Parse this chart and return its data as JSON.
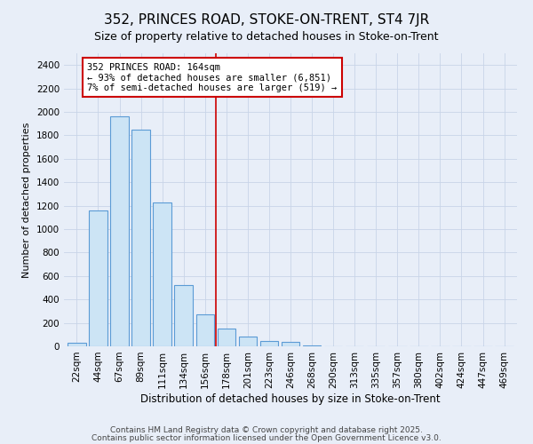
{
  "title": "352, PRINCES ROAD, STOKE-ON-TRENT, ST4 7JR",
  "subtitle": "Size of property relative to detached houses in Stoke-on-Trent",
  "xlabel": "Distribution of detached houses by size in Stoke-on-Trent",
  "ylabel": "Number of detached properties",
  "bar_labels": [
    "22sqm",
    "44sqm",
    "67sqm",
    "89sqm",
    "111sqm",
    "134sqm",
    "156sqm",
    "178sqm",
    "201sqm",
    "223sqm",
    "246sqm",
    "268sqm",
    "290sqm",
    "313sqm",
    "335sqm",
    "357sqm",
    "380sqm",
    "402sqm",
    "424sqm",
    "447sqm",
    "469sqm"
  ],
  "bar_values": [
    30,
    1160,
    1960,
    1850,
    1230,
    520,
    275,
    150,
    85,
    45,
    35,
    5,
    3,
    1,
    0,
    0,
    0,
    0,
    0,
    0,
    0
  ],
  "bar_color": "#cce4f5",
  "bar_edge_color": "#5b9bd5",
  "vline_x": 6.5,
  "vline_color": "#cc0000",
  "annotation_title": "352 PRINCES ROAD: 164sqm",
  "annotation_line1": "← 93% of detached houses are smaller (6,851)",
  "annotation_line2": "7% of semi-detached houses are larger (519) →",
  "annotation_box_color": "white",
  "annotation_box_edge": "#cc0000",
  "ylim": [
    0,
    2500
  ],
  "yticks": [
    0,
    200,
    400,
    600,
    800,
    1000,
    1200,
    1400,
    1600,
    1800,
    2000,
    2200,
    2400
  ],
  "footnote1": "Contains HM Land Registry data © Crown copyright and database right 2025.",
  "footnote2": "Contains public sector information licensed under the Open Government Licence v3.0.",
  "bg_color": "#e8eef8",
  "grid_color": "#c8d4e8",
  "title_fontsize": 11,
  "subtitle_fontsize": 9,
  "xlabel_fontsize": 8.5,
  "ylabel_fontsize": 8,
  "tick_fontsize": 7.5,
  "annotation_fontsize": 7.5,
  "footnote_fontsize": 6.5
}
